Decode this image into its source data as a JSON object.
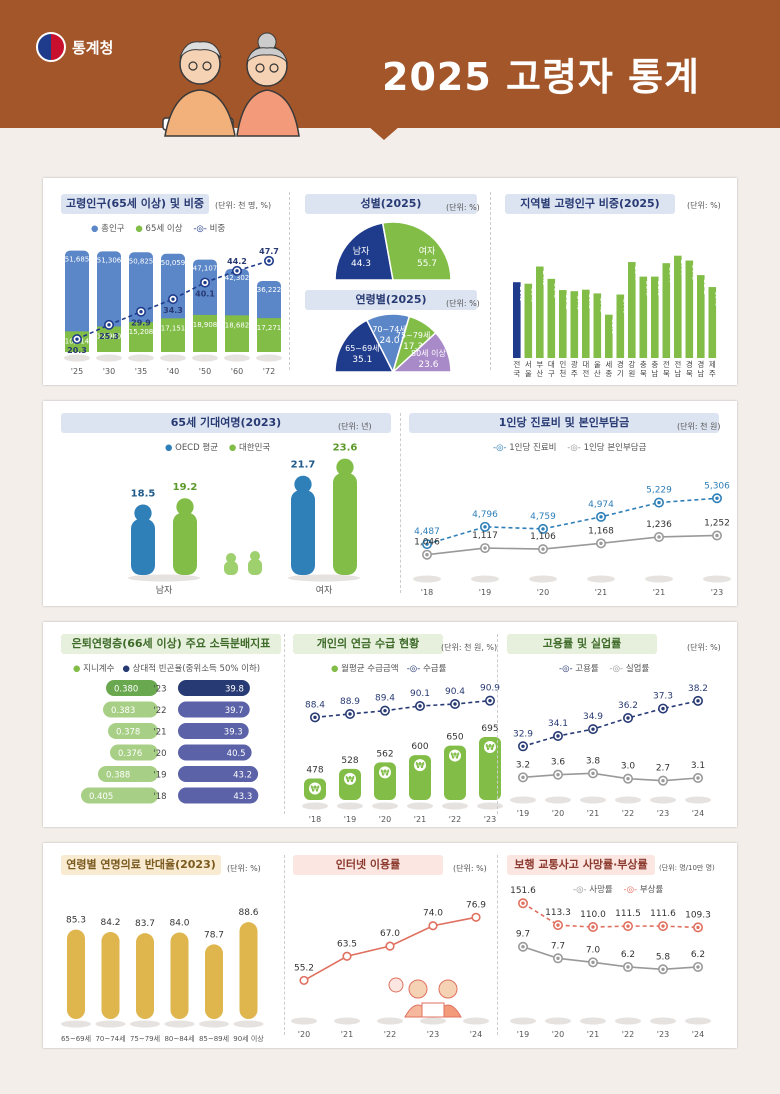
{
  "header": {
    "agency": "통계청",
    "title": "2025 고령자 통계"
  },
  "colors": {
    "header": "#a3562a",
    "navy": "#1f3b8c",
    "blue": "#5b86c7",
    "green": "#82bd48",
    "gold": "#dfb64e",
    "red": "#e0705f",
    "gray": "#999999"
  },
  "charts": {
    "elderly_pop": {
      "title": "고령인구(65세 이상) 및 비중",
      "unit": "(단위: 천 명, %)",
      "legend": [
        "총인구",
        "65세 이상",
        "비중"
      ]
    },
    "gender": {
      "title": "성별(2025)",
      "unit": "(단위: %)"
    },
    "age": {
      "title": "연령별(2025)",
      "unit": "(단위: %)"
    },
    "regional": {
      "title": "지역별 고령인구 비중(2025)",
      "unit": "(단위: %)"
    },
    "life_exp": {
      "title": "65세 기대여명(2023)",
      "unit": "(단위: 년)",
      "legend": [
        "OECD 평균",
        "대한민국"
      ]
    },
    "medical": {
      "title": "1인당 진료비 및 본인부담금",
      "unit": "(단위: 천 원)",
      "legend": [
        "1인당 진료비",
        "1인당 본인부담금"
      ]
    },
    "income": {
      "title": "은퇴연령층(66세 이상) 주요 소득분배지표",
      "legend": [
        "지니계수",
        "상대적 빈곤율(중위소득 50% 이하)"
      ]
    },
    "pension": {
      "title": "개인의 연금 수급 현황",
      "unit": "(단위: 천 원, %)",
      "legend": [
        "월평균 수급금액",
        "수급률"
      ]
    },
    "employment": {
      "title": "고용률 및 실업률",
      "unit": "(단위: %)",
      "legend": [
        "고용률",
        "실업률"
      ]
    },
    "care": {
      "title": "연령별 연명의료 반대율(2023)",
      "unit": "(단위: %)"
    },
    "internet": {
      "title": "인터넷 이용률",
      "unit": "(단위: %)"
    },
    "traffic": {
      "title": "보행 교통사고 사망률·부상률",
      "unit": "(단위: 명/10만 명)",
      "legend": [
        "사망률",
        "부상률"
      ]
    }
  },
  "chart_data": [
    {
      "id": "elderly_pop",
      "type": "bar",
      "categories": [
        "'25",
        "'30",
        "'35",
        "'40",
        "'50",
        "'60",
        "'72"
      ],
      "series": [
        {
          "name": "총인구",
          "values": [
            51685,
            51306,
            50825,
            50059,
            47107,
            42302,
            36222
          ]
        },
        {
          "name": "65세 이상",
          "values": [
            10514,
            12980,
            15208,
            17151,
            18908,
            18682,
            17271
          ]
        },
        {
          "name": "비중",
          "values": [
            20.3,
            25.3,
            29.9,
            34.3,
            40.1,
            44.2,
            47.7
          ]
        }
      ]
    },
    {
      "id": "gender",
      "type": "pie",
      "categories": [
        "남자",
        "여자"
      ],
      "values": [
        44.3,
        55.7
      ]
    },
    {
      "id": "age",
      "type": "pie",
      "categories": [
        "65~69세",
        "70~74세",
        "75~79세",
        "80세 이상"
      ],
      "values": [
        35.1,
        24.0,
        17.3,
        23.6
      ]
    },
    {
      "id": "regional",
      "type": "bar",
      "categories": [
        "전국",
        "서울",
        "부산",
        "대구",
        "인천",
        "광주",
        "대전",
        "울산",
        "세종",
        "경기",
        "강원",
        "충북",
        "충남",
        "전북",
        "전남",
        "경북",
        "경남",
        "제주"
      ],
      "values": [
        20.3,
        19.9,
        24.5,
        21.2,
        18.2,
        17.9,
        18.3,
        17.3,
        11.6,
        17.0,
        25.7,
        21.8,
        21.8,
        25.4,
        27.4,
        26.1,
        22.2,
        19.0
      ]
    },
    {
      "id": "life_exp",
      "type": "bar",
      "categories": [
        "남자",
        "여자"
      ],
      "series": [
        {
          "name": "OECD 평균",
          "values": [
            18.5,
            21.7
          ]
        },
        {
          "name": "대한민국",
          "values": [
            19.2,
            23.6
          ]
        }
      ]
    },
    {
      "id": "medical",
      "type": "line",
      "x": [
        "'18",
        "'19",
        "'20",
        "'21",
        "'21",
        "'23"
      ],
      "series": [
        {
          "name": "1인당 진료비",
          "values": [
            4487,
            4796,
            4759,
            4974,
            5229,
            5306
          ]
        },
        {
          "name": "1인당 본인부담금",
          "values": [
            1046,
            1117,
            1106,
            1168,
            1236,
            1252
          ]
        }
      ]
    },
    {
      "id": "income",
      "type": "bar",
      "categories": [
        "'23",
        "'22",
        "'21",
        "'20",
        "'19",
        "'18"
      ],
      "series": [
        {
          "name": "지니계수",
          "values": [
            0.38,
            0.383,
            0.378,
            0.376,
            0.388,
            0.405
          ]
        },
        {
          "name": "상대적 빈곤율(중위소득 50% 이하)",
          "values": [
            39.8,
            39.7,
            39.3,
            40.5,
            43.2,
            43.3
          ]
        }
      ]
    },
    {
      "id": "pension",
      "type": "bar",
      "categories": [
        "'18",
        "'19",
        "'20",
        "'21",
        "'22",
        "'23"
      ],
      "series": [
        {
          "name": "월평균 수급금액",
          "values": [
            478,
            528,
            562,
            600,
            650,
            695
          ]
        },
        {
          "name": "수급률",
          "values": [
            88.4,
            88.9,
            89.4,
            90.1,
            90.4,
            90.9
          ]
        }
      ]
    },
    {
      "id": "employment",
      "type": "line",
      "x": [
        "'19",
        "'20",
        "'21",
        "'22",
        "'23",
        "'24"
      ],
      "series": [
        {
          "name": "고용률",
          "values": [
            32.9,
            34.1,
            34.9,
            36.2,
            37.3,
            38.2
          ]
        },
        {
          "name": "실업률",
          "values": [
            3.2,
            3.6,
            3.8,
            3.0,
            2.7,
            3.1
          ]
        }
      ]
    },
    {
      "id": "care",
      "type": "bar",
      "categories": [
        "65~69세",
        "70~74세",
        "75~79세",
        "80~84세",
        "85~89세",
        "90세 이상"
      ],
      "values": [
        85.3,
        84.2,
        83.7,
        84.0,
        78.7,
        88.6
      ]
    },
    {
      "id": "internet",
      "type": "line",
      "x": [
        "'20",
        "'21",
        "'22",
        "'23",
        "'24"
      ],
      "values": [
        55.2,
        63.5,
        67.0,
        74.0,
        76.9
      ]
    },
    {
      "id": "traffic",
      "type": "line",
      "x": [
        "'19",
        "'20",
        "'21",
        "'22",
        "'23",
        "'24"
      ],
      "series": [
        {
          "name": "사망률",
          "values": [
            9.7,
            7.7,
            7.0,
            6.2,
            5.8,
            6.2
          ]
        },
        {
          "name": "부상률",
          "values": [
            151.6,
            113.3,
            110.0,
            111.5,
            111.6,
            109.3
          ]
        }
      ]
    }
  ]
}
